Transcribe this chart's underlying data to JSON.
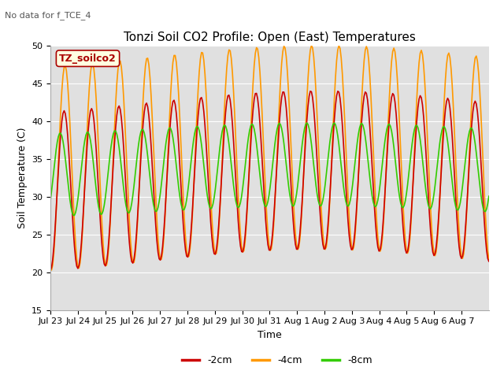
{
  "title": "Tonzi Soil CO2 Profile: Open (East) Temperatures",
  "subtitle": "No data for f_TCE_4",
  "xlabel": "Time",
  "ylabel": "Soil Temperature (C)",
  "ylim": [
    15,
    50
  ],
  "yticks": [
    15,
    20,
    25,
    30,
    35,
    40,
    45,
    50
  ],
  "legend_label": "TZ_soilco2",
  "series_labels": [
    "-2cm",
    "-4cm",
    "-8cm"
  ],
  "series_colors": [
    "#cc0000",
    "#ff9900",
    "#33cc00"
  ],
  "xtick_labels": [
    "Jul 23",
    "Jul 24",
    "Jul 25",
    "Jul 26",
    "Jul 27",
    "Jul 28",
    "Jul 29",
    "Jul 30",
    "Jul 31",
    "Aug 1",
    "Aug 2",
    "Aug 3",
    "Aug 4",
    "Aug 5",
    "Aug 6",
    "Aug 7"
  ],
  "bg_color": "#e0e0e0",
  "title_fontsize": 11,
  "label_fontsize": 9,
  "tick_fontsize": 8,
  "figwidth": 6.4,
  "figheight": 4.8,
  "dpi": 100
}
